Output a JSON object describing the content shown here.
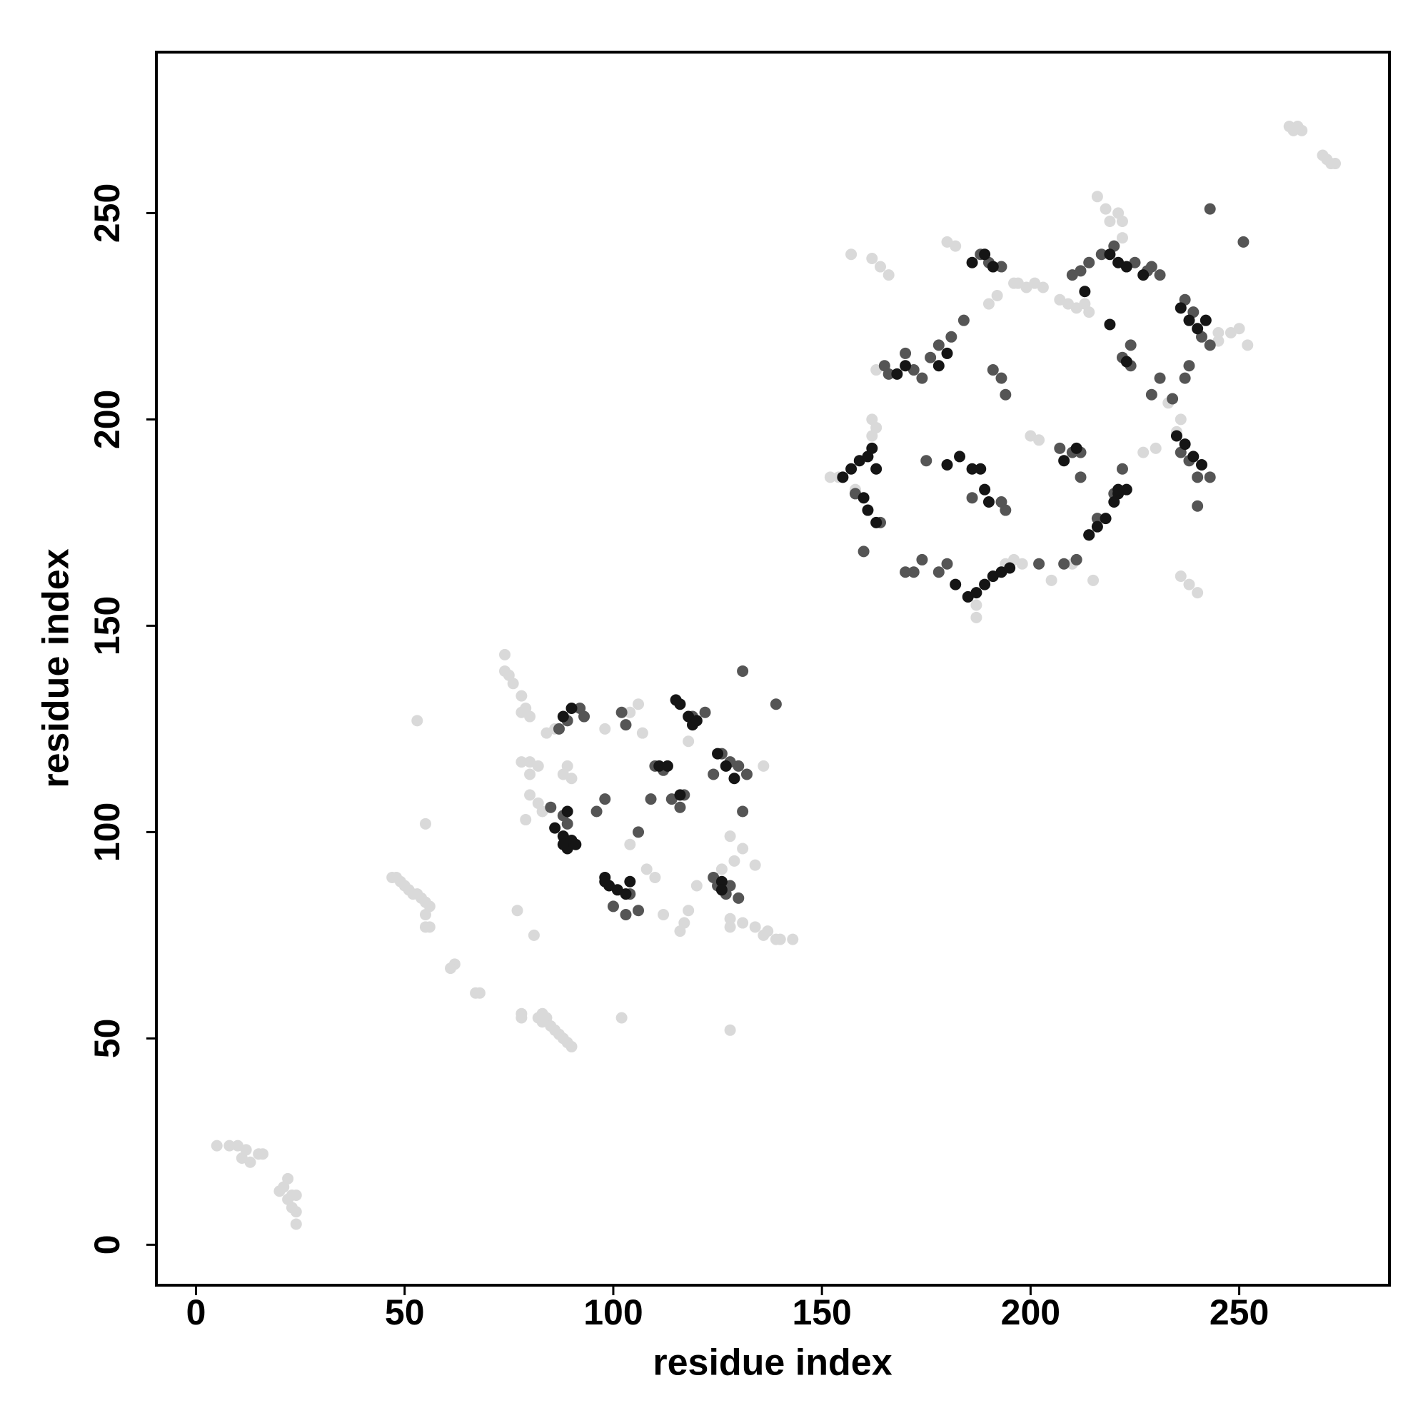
{
  "chart_data": {
    "type": "scatter",
    "xlabel": "residue index",
    "ylabel": "residue index",
    "xlim": [
      -9.5,
      286
    ],
    "ylim": [
      -9.8,
      289
    ],
    "xticks": [
      0,
      50,
      100,
      150,
      200,
      250
    ],
    "yticks": [
      0,
      50,
      100,
      150,
      200,
      250
    ],
    "grid": false,
    "series": [
      {
        "color": "#d9d9d9",
        "x": [
          5,
          8,
          10,
          12,
          11,
          13,
          15,
          16,
          20,
          21,
          22,
          22,
          23,
          24,
          23,
          24,
          24,
          47,
          48,
          49,
          50,
          51,
          52,
          53,
          54,
          55,
          56,
          55,
          56,
          55,
          62,
          61,
          68,
          67,
          78,
          78,
          82,
          83,
          84,
          85,
          86,
          87,
          88,
          89,
          90,
          83,
          53,
          55,
          74,
          74,
          75,
          76,
          78,
          79,
          80,
          78,
          128,
          131,
          134,
          136,
          137,
          139,
          140,
          143,
          128,
          162,
          164,
          166,
          157,
          152,
          154,
          155,
          158,
          262,
          263,
          264,
          265,
          271,
          272,
          273,
          270,
          236,
          238,
          240,
          216,
          218,
          219,
          221,
          222,
          222,
          197,
          199,
          201,
          196,
          203,
          245,
          248,
          250,
          252,
          245,
          162,
          163,
          162,
          187,
          187,
          194,
          196,
          198,
          180,
          182,
          236,
          235,
          233,
          230,
          227,
          200,
          202,
          207,
          209,
          211,
          214,
          213,
          192,
          190,
          205,
          210,
          215,
          163,
          78,
          80,
          82,
          80,
          80,
          82,
          83,
          79,
          86,
          84,
          88,
          89,
          90,
          98,
          104,
          106,
          107,
          104,
          108,
          112,
          110,
          118,
          117,
          116,
          120,
          126,
          128,
          129,
          131,
          134,
          77,
          81,
          102,
          128,
          136,
          118
        ],
        "values": [
          24,
          24,
          24,
          23,
          21,
          20,
          22,
          22,
          13,
          14,
          16,
          11,
          12,
          12,
          9,
          8,
          5,
          89,
          89,
          88,
          87,
          86,
          85,
          85,
          84,
          83,
          82,
          80,
          77,
          77,
          68,
          67,
          61,
          61,
          55,
          56,
          55,
          54,
          55,
          53,
          52,
          51,
          50,
          49,
          48,
          56,
          127,
          102,
          143,
          139,
          138,
          136,
          133,
          130,
          128,
          129,
          79,
          78,
          77,
          75,
          76,
          74,
          74,
          74,
          77,
          239,
          237,
          235,
          240,
          186,
          186,
          186,
          183,
          271,
          270,
          271,
          270,
          263,
          262,
          262,
          264,
          162,
          160,
          158,
          254,
          251,
          248,
          250,
          248,
          244,
          233,
          232,
          233,
          233,
          232,
          221,
          221,
          222,
          218,
          219,
          200,
          198,
          196,
          152,
          155,
          165,
          166,
          165,
          243,
          242,
          200,
          197,
          204,
          193,
          192,
          196,
          195,
          229,
          228,
          227,
          226,
          228,
          230,
          228,
          161,
          165,
          161,
          212,
          117,
          117,
          116,
          114,
          109,
          107,
          105,
          103,
          125,
          124,
          114,
          116,
          113,
          125,
          129,
          131,
          124,
          97,
          91,
          80,
          89,
          81,
          78,
          76,
          87,
          91,
          99,
          93,
          96,
          92,
          81,
          75,
          55,
          52,
          116,
          122
        ]
      },
      {
        "color": "#555555",
        "x": [
          85,
          88,
          89,
          87,
          89,
          92,
          93,
          102,
          103,
          110,
          112,
          109,
          114,
          116,
          117,
          106,
          104,
          100,
          103,
          106,
          124,
          125,
          127,
          128,
          124,
          126,
          128,
          130,
          132,
          122,
          119,
          130,
          131,
          112,
          131,
          139,
          98,
          96,
          165,
          166,
          170,
          172,
          174,
          176,
          178,
          181,
          184,
          188,
          190,
          193,
          210,
          212,
          214,
          217,
          220,
          225,
          228,
          231,
          222,
          224,
          229,
          231,
          234,
          237,
          238,
          237,
          239,
          241,
          243,
          236,
          238,
          240,
          243,
          222,
          220,
          216,
          214,
          211,
          208,
          202,
          178,
          174,
          172,
          170,
          180,
          160,
          164,
          158,
          193,
          191,
          193,
          194,
          207,
          210,
          212,
          212,
          175,
          186,
          224,
          229,
          243,
          251,
          240,
          194
        ],
        "values": [
          106,
          104,
          102,
          125,
          127,
          130,
          128,
          129,
          126,
          116,
          115,
          108,
          108,
          106,
          109,
          100,
          85,
          82,
          80,
          81,
          89,
          87,
          85,
          87,
          114,
          119,
          117,
          116,
          114,
          129,
          128,
          84,
          105,
          115,
          139,
          131,
          108,
          105,
          213,
          211,
          216,
          212,
          210,
          215,
          218,
          220,
          224,
          240,
          238,
          237,
          235,
          236,
          238,
          240,
          242,
          238,
          236,
          235,
          215,
          218,
          206,
          210,
          205,
          210,
          213,
          229,
          226,
          220,
          218,
          192,
          190,
          186,
          186,
          188,
          182,
          176,
          172,
          166,
          165,
          165,
          163,
          166,
          163,
          163,
          165,
          168,
          175,
          182,
          180,
          212,
          210,
          206,
          193,
          192,
          192,
          186,
          190,
          181,
          213,
          237,
          251,
          243,
          179,
          178
        ]
      },
      {
        "color": "#151515",
        "x": [
          86,
          88,
          90,
          91,
          89,
          88,
          89,
          88,
          90,
          98,
          99,
          101,
          103,
          104,
          98,
          116,
          118,
          119,
          115,
          120,
          125,
          127,
          129,
          126,
          126,
          111,
          116,
          113,
          155,
          157,
          159,
          161,
          162,
          163,
          160,
          161,
          163,
          182,
          185,
          187,
          189,
          191,
          193,
          195,
          186,
          188,
          189,
          190,
          180,
          183,
          178,
          180,
          186,
          189,
          191,
          219,
          221,
          223,
          227,
          219,
          223,
          236,
          238,
          240,
          242,
          235,
          237,
          239,
          241,
          223,
          221,
          220,
          218,
          216,
          214,
          208,
          211,
          221,
          213,
          170,
          168
        ],
        "values": [
          101,
          99,
          98,
          97,
          96,
          97,
          105,
          128,
          130,
          89,
          87,
          86,
          85,
          88,
          88,
          131,
          128,
          126,
          132,
          127,
          119,
          116,
          113,
          88,
          86,
          116,
          109,
          116,
          186,
          188,
          190,
          191,
          193,
          188,
          181,
          178,
          175,
          160,
          157,
          158,
          160,
          162,
          163,
          164,
          188,
          188,
          183,
          180,
          189,
          191,
          213,
          216,
          238,
          240,
          237,
          240,
          238,
          237,
          235,
          223,
          214,
          227,
          224,
          222,
          224,
          196,
          194,
          191,
          189,
          183,
          182,
          180,
          176,
          174,
          172,
          190,
          193,
          183,
          231,
          213,
          211
        ]
      }
    ]
  }
}
